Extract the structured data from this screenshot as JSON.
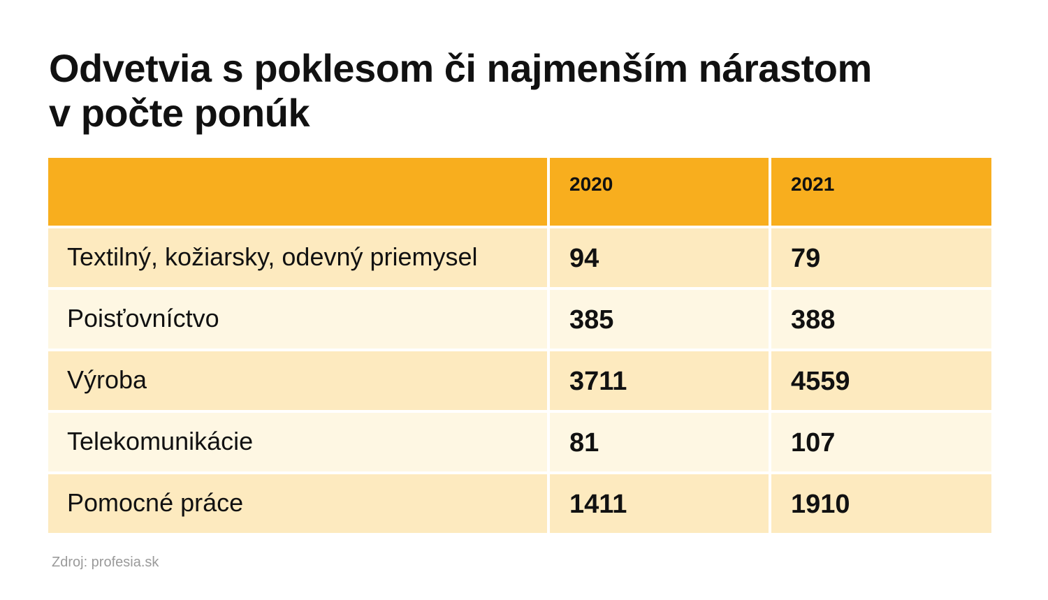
{
  "title": "Odvetvia s  poklesom či najmenším nárastom\nv počte ponúk",
  "source": "Zdroj: profesia.sk",
  "colors": {
    "header": "#f8ae1e",
    "row_odd": "#fdeabf",
    "row_even": "#fef7e3"
  },
  "chart_data": {
    "type": "table",
    "title": "Odvetvia s  poklesom či najmenším nárastom v počte ponúk",
    "columns": [
      "",
      "2020",
      "2021"
    ],
    "rows": [
      {
        "label": "Textilný, kožiarsky, odevný priemysel",
        "values": [
          "94",
          "79"
        ]
      },
      {
        "label": "Poisťovníctvo",
        "values": [
          "385",
          "388"
        ]
      },
      {
        "label": "Výroba",
        "values": [
          "3711",
          "4559"
        ]
      },
      {
        "label": "Telekomunikácie",
        "values": [
          "81",
          "107"
        ]
      },
      {
        "label": "Pomocné práce",
        "values": [
          "1411",
          "1910"
        ]
      }
    ]
  }
}
